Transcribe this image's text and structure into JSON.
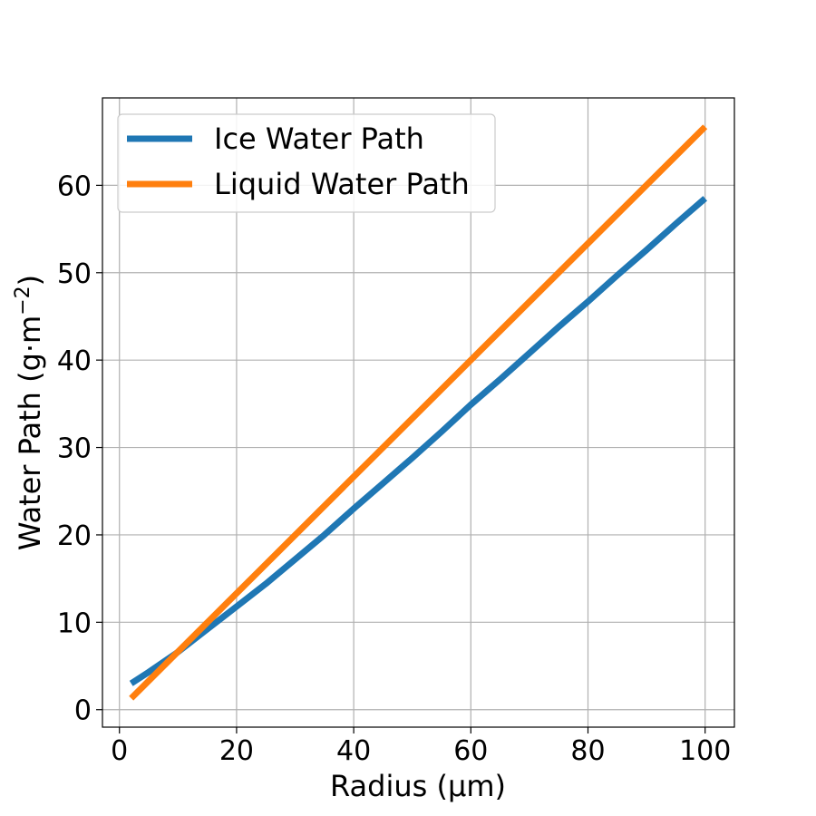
{
  "chart_data": {
    "type": "line",
    "title": "",
    "xlabel": "Radius (μm)",
    "ylabel": "Water Path (g·m",
    "ylabel_sup": "−2",
    "ylabel_close": ")",
    "xlim": [
      -2.9,
      105
    ],
    "ylim": [
      -2.0,
      70.0
    ],
    "xticks": [
      0,
      20,
      40,
      60,
      80,
      100
    ],
    "xtick_labels": [
      "0",
      "20",
      "40",
      "60",
      "80",
      "100"
    ],
    "yticks": [
      0,
      10,
      20,
      30,
      40,
      50,
      60
    ],
    "ytick_labels": [
      "0",
      "10",
      "20",
      "30",
      "40",
      "50",
      "60"
    ],
    "grid": true,
    "legend_position": "top-left",
    "series": [
      {
        "name": "Ice Water Path",
        "color": "#1f77b4",
        "x": [
          2,
          5,
          10,
          15,
          20,
          25,
          30,
          35,
          40,
          45,
          50,
          55,
          60,
          65,
          70,
          75,
          80,
          85,
          90,
          95,
          100
        ],
        "y": [
          3.0,
          4.3,
          6.6,
          9.2,
          11.8,
          14.4,
          17.2,
          20.0,
          23.0,
          25.9,
          28.8,
          31.8,
          34.9,
          37.8,
          40.8,
          43.8,
          46.7,
          49.7,
          52.6,
          55.6,
          58.5
        ]
      },
      {
        "name": "Liquid Water Path",
        "color": "#ff7f0e",
        "x": [
          2,
          100
        ],
        "y": [
          1.3,
          66.7
        ]
      }
    ]
  }
}
